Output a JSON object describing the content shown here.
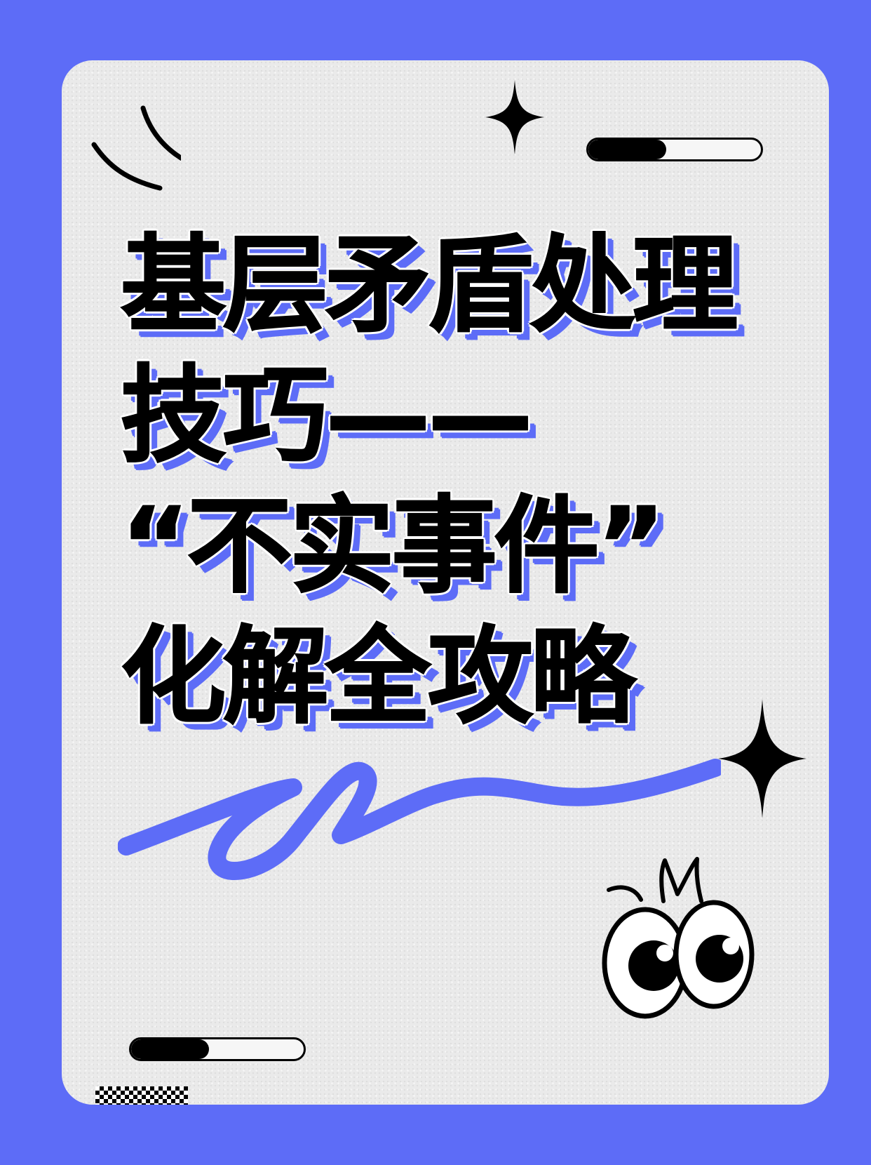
{
  "colors": {
    "background": "#5d6cf7",
    "card": "#eaeaea",
    "title_fill": "#000000",
    "title_outline": "#ffffff",
    "title_shadow": "#5d6cf7",
    "accent": "#5d6cf7"
  },
  "title": {
    "lines": [
      "基层矛盾处理",
      "技巧——",
      "“不实事件”",
      "化解全攻略"
    ]
  },
  "decorations": {
    "top_progress": {
      "icon": "progress-bar",
      "level": 0.45
    },
    "bottom_progress": {
      "icon": "progress-bar",
      "level": 0.45
    },
    "icons": [
      "motion-lines-icon",
      "sparkle-icon",
      "sparkle-icon",
      "squiggle-icon",
      "eyes-icon",
      "checker-strip"
    ]
  }
}
